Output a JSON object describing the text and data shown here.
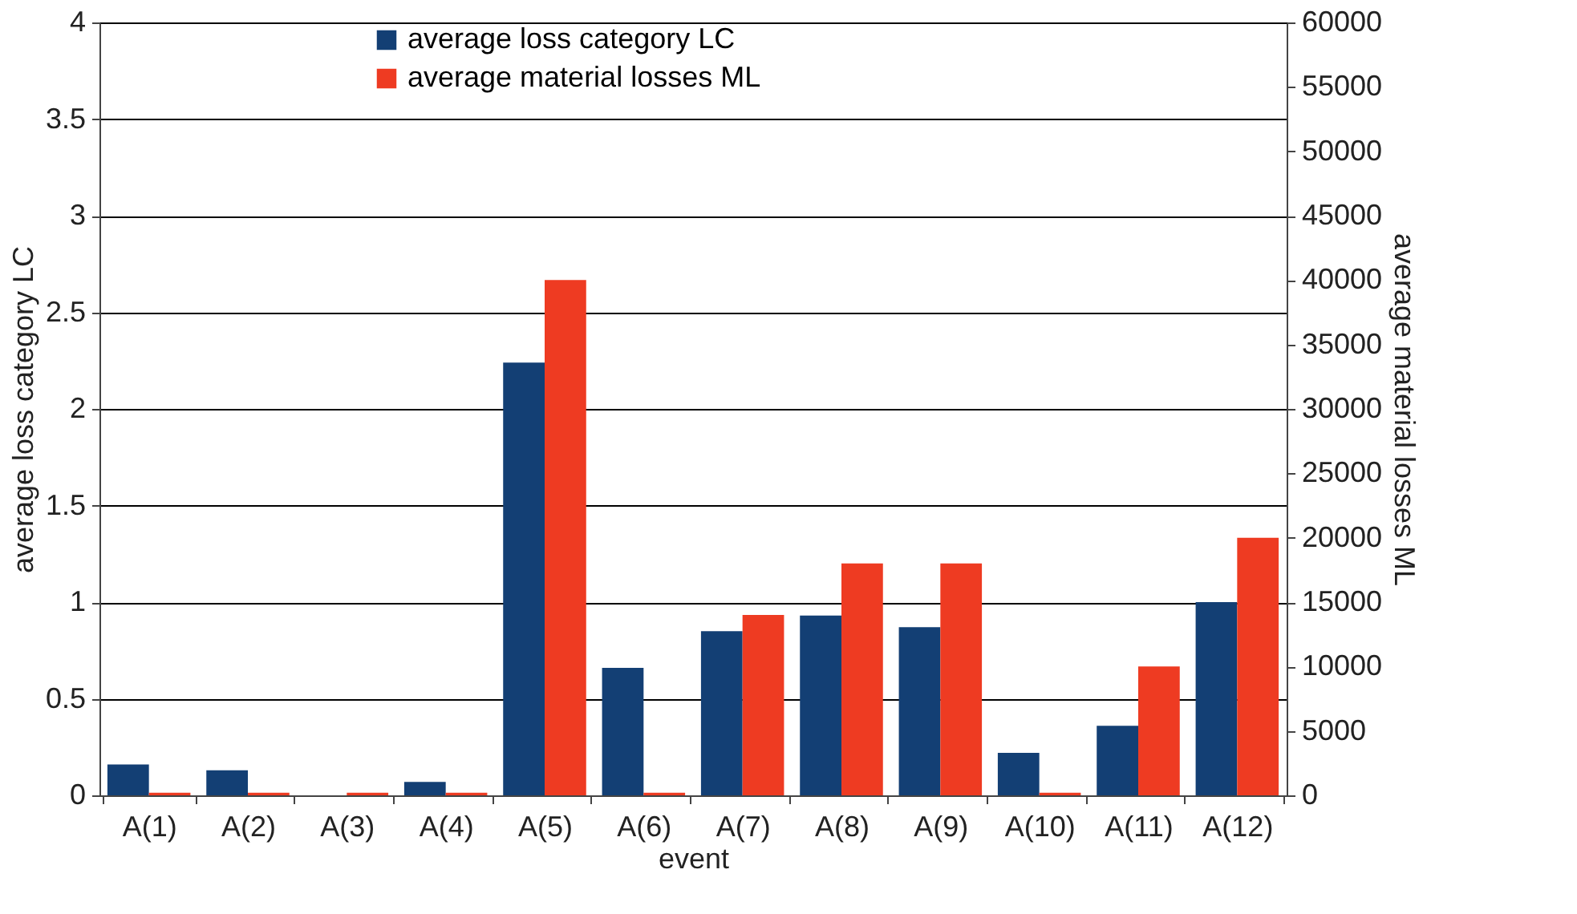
{
  "chart_data": {
    "type": "bar",
    "xlabel": "event",
    "ylabel": "average loss category LC",
    "y2label": "average material losses ML",
    "categories": [
      "A(1)",
      "A(2)",
      "A(3)",
      "A(4)",
      "A(5)",
      "A(6)",
      "A(7)",
      "A(8)",
      "A(9)",
      "A(10)",
      "A(11)",
      "A(12)"
    ],
    "series": [
      {
        "name": "average loss category LC",
        "color": "#133f74",
        "values": [
          0.16,
          0.13,
          0,
          0.07,
          2.24,
          0.66,
          0.85,
          0.93,
          0.87,
          0.22,
          0.36,
          1.0
        ]
      },
      {
        "name": "average material losses ML",
        "color": "#ee3b22",
        "axis": "y2",
        "values": [
          200,
          200,
          200,
          200,
          40000,
          200,
          14000,
          18000,
          18000,
          200,
          10000,
          20000
        ]
      }
    ],
    "ylim": [
      0,
      4
    ],
    "yticks": [
      0,
      0.5,
      1,
      1.5,
      2,
      2.5,
      3,
      3.5,
      4
    ],
    "y2lim": [
      0,
      60000
    ],
    "y2ticks": [
      0,
      5000,
      10000,
      15000,
      20000,
      25000,
      30000,
      35000,
      40000,
      45000,
      50000,
      55000,
      60000
    ],
    "grid": "y",
    "legend": "top"
  }
}
